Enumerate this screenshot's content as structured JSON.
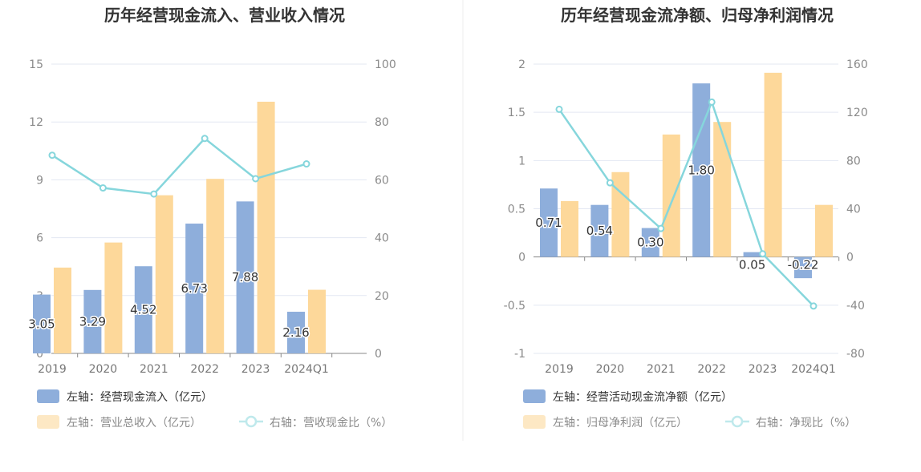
{
  "chart_data": [
    {
      "type": "bar+line",
      "title": "历年经营现金流入、营业收入情况",
      "categories": [
        "2019",
        "2020",
        "2021",
        "2022",
        "2023",
        "2024Q1"
      ],
      "left_axis": {
        "ticks": [
          "0",
          "3",
          "6",
          "9",
          "12",
          "15"
        ],
        "ylim": [
          0,
          15
        ]
      },
      "right_axis": {
        "ticks": [
          "0",
          "20",
          "40",
          "60",
          "80",
          "100"
        ],
        "ylim": [
          0,
          100
        ]
      },
      "series": [
        {
          "name": "左轴：经营现金流入（亿元）",
          "type": "bar",
          "axis": "left",
          "color": "#8eaedb",
          "values": [
            3.05,
            3.29,
            4.52,
            6.73,
            7.88,
            2.16
          ],
          "labels": [
            "3.05",
            "3.29",
            "4.52",
            "6.73",
            "7.88",
            "2.16"
          ]
        },
        {
          "name": "左轴：营业总收入（亿元）",
          "type": "bar",
          "axis": "left",
          "color": "#fdd89a",
          "values": [
            4.45,
            5.75,
            8.2,
            9.05,
            13.05,
            3.3
          ]
        },
        {
          "name": "右轴：营收现金比（%）",
          "type": "line",
          "axis": "right",
          "color": "#86d6dc",
          "values": [
            68.5,
            57.2,
            55.1,
            74.3,
            60.4,
            65.5
          ]
        }
      ]
    },
    {
      "type": "bar+line",
      "title": "历年经营现金流净额、归母净利润情况",
      "categories": [
        "2019",
        "2020",
        "2021",
        "2022",
        "2023",
        "2024Q1"
      ],
      "left_axis": {
        "ticks": [
          "-1",
          "-0.5",
          "0",
          "0.5",
          "1",
          "1.5",
          "2"
        ],
        "ylim": [
          -1,
          2
        ]
      },
      "right_axis": {
        "ticks": [
          "-80",
          "-40",
          "0",
          "40",
          "80",
          "120",
          "160"
        ],
        "ylim": [
          -80,
          160
        ]
      },
      "series": [
        {
          "name": "左轴：经营活动现金流净额（亿元）",
          "type": "bar",
          "axis": "left",
          "color": "#8eaedb",
          "values": [
            0.71,
            0.54,
            0.3,
            1.8,
            0.05,
            -0.22
          ],
          "labels": [
            "0.71",
            "0.54",
            "0.30",
            "1.80",
            "0.05",
            "-0.22"
          ]
        },
        {
          "name": "左轴：归母净利润（亿元）",
          "type": "bar",
          "axis": "left",
          "color": "#fdd89a",
          "values": [
            0.58,
            0.88,
            1.27,
            1.4,
            1.91,
            0.54
          ]
        },
        {
          "name": "右轴：净现比（%）",
          "type": "line",
          "axis": "right",
          "color": "#86d6dc",
          "values": [
            122.5,
            61.5,
            23.6,
            128.5,
            2.6,
            -40.7
          ]
        }
      ]
    }
  ]
}
